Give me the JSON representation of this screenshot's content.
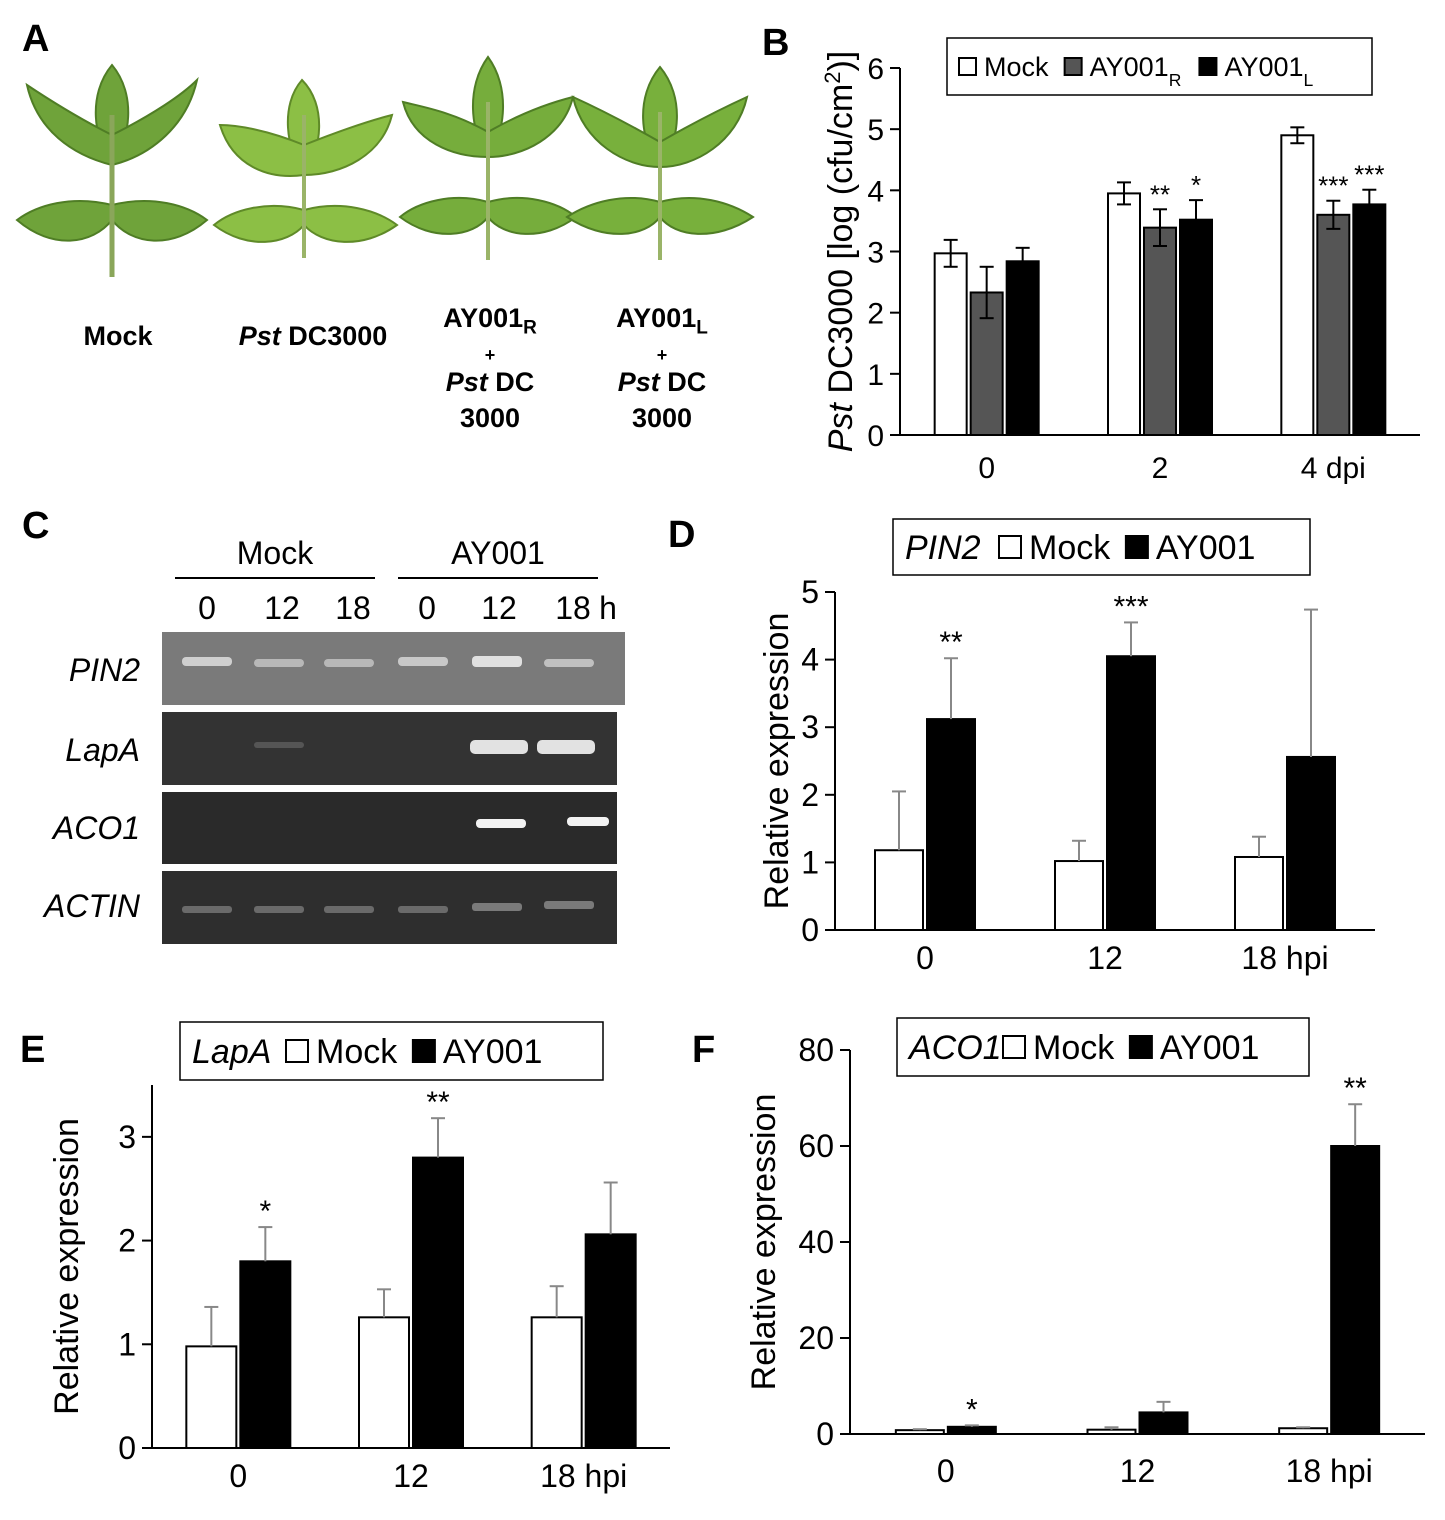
{
  "panels": {
    "A": {
      "letter": "A",
      "labels": [
        {
          "lines": [
            "Mock"
          ]
        },
        {
          "italic": "Pst",
          "rest": " DC3000"
        },
        {
          "top": "AY001",
          "sub": "R",
          "plus": "+",
          "italic": "Pst",
          "rest": " DC",
          "last": "3000"
        },
        {
          "top": "AY001",
          "sub": "L",
          "plus": "+",
          "italic": "Pst",
          "rest": " DC",
          "last": "3000"
        }
      ]
    },
    "C": {
      "letter": "C",
      "group_headers": [
        "Mock",
        "AY001"
      ],
      "lanes": [
        "0",
        "12",
        "18",
        "0",
        "12",
        "18"
      ],
      "unit": "h",
      "genes": [
        "PIN2",
        "LapA",
        "ACO1",
        "ACTIN"
      ]
    }
  },
  "colors": {
    "mock": "#ffffff",
    "ay001r": "#555555",
    "ay001": "#000000",
    "gel": "#2c2c2c",
    "leaf": "#6fa33a"
  },
  "chart_data": [
    {
      "panel": "B",
      "type": "bar",
      "ylabel_italic": "Pst",
      "ylabel_rest": " DC3000 [log (cfu/cm",
      "ylabel_sup": "2",
      "ylabel_end": ")]",
      "categories": [
        "0",
        "2",
        "4 dpi"
      ],
      "ylim": [
        0,
        6
      ],
      "yticks": [
        "0",
        "1",
        "2",
        "3",
        "4",
        "5",
        "6"
      ],
      "legend_position": "top",
      "series": [
        {
          "name": "Mock",
          "sub": "",
          "color": "#ffffff",
          "values": [
            2.97,
            3.95,
            4.9
          ],
          "errors": [
            0.22,
            0.18,
            0.13
          ],
          "sig": [
            "",
            "",
            ""
          ]
        },
        {
          "name": "AY001",
          "sub": "R",
          "color": "#555555",
          "values": [
            2.33,
            3.39,
            3.6
          ],
          "errors": [
            0.42,
            0.3,
            0.23
          ],
          "sig": [
            "",
            "**",
            "***"
          ]
        },
        {
          "name": "AY001",
          "sub": "L",
          "color": "#000000",
          "values": [
            2.84,
            3.52,
            3.77
          ],
          "errors": [
            0.22,
            0.32,
            0.24
          ],
          "sig": [
            "",
            "*",
            "***"
          ]
        }
      ]
    },
    {
      "panel": "D",
      "type": "bar",
      "gene": "PIN2",
      "ylabel": "Relative expression",
      "categories": [
        "0",
        "12",
        "18 hpi"
      ],
      "ylim": [
        0,
        5
      ],
      "yticks": [
        "0",
        "1",
        "2",
        "3",
        "4",
        "5"
      ],
      "legend_position": "top",
      "series": [
        {
          "name": "Mock",
          "color": "#ffffff",
          "values": [
            1.18,
            1.02,
            1.08
          ],
          "errors": [
            0.87,
            0.3,
            0.3
          ],
          "sig": [
            "",
            "",
            ""
          ]
        },
        {
          "name": "AY001",
          "color": "#000000",
          "values": [
            3.12,
            4.05,
            2.56
          ],
          "errors": [
            0.9,
            0.5,
            2.18
          ],
          "sig": [
            "**",
            "***",
            ""
          ]
        }
      ]
    },
    {
      "panel": "E",
      "type": "bar",
      "gene": "LapA",
      "ylabel": "Relative expression",
      "categories": [
        "0",
        "12",
        "18 hpi"
      ],
      "ylim": [
        0,
        3.5
      ],
      "yticks": [
        "0",
        "1",
        "2",
        "3"
      ],
      "legend_position": "top",
      "series": [
        {
          "name": "Mock",
          "color": "#ffffff",
          "values": [
            0.98,
            1.26,
            1.26
          ],
          "errors": [
            0.38,
            0.27,
            0.3
          ],
          "sig": [
            "",
            "",
            ""
          ]
        },
        {
          "name": "AY001",
          "color": "#000000",
          "values": [
            1.8,
            2.8,
            2.06
          ],
          "errors": [
            0.33,
            0.38,
            0.5
          ],
          "sig": [
            "*",
            "**",
            ""
          ]
        }
      ]
    },
    {
      "panel": "F",
      "type": "bar",
      "gene": "ACO1",
      "ylabel": "Relative expression",
      "categories": [
        "0",
        "12",
        "18 hpi"
      ],
      "ylim": [
        0,
        80
      ],
      "yticks": [
        "0",
        "20",
        "40",
        "60",
        "80"
      ],
      "legend_position": "top",
      "series": [
        {
          "name": "Mock",
          "color": "#ffffff",
          "values": [
            0.8,
            0.9,
            1.2
          ],
          "errors": [
            0.2,
            0.5,
            0.2
          ],
          "sig": [
            "",
            "",
            ""
          ]
        },
        {
          "name": "AY001",
          "color": "#000000",
          "values": [
            1.5,
            4.5,
            60
          ],
          "errors": [
            0.3,
            2.2,
            8.7
          ],
          "sig": [
            "*",
            "",
            "**"
          ]
        }
      ]
    }
  ]
}
